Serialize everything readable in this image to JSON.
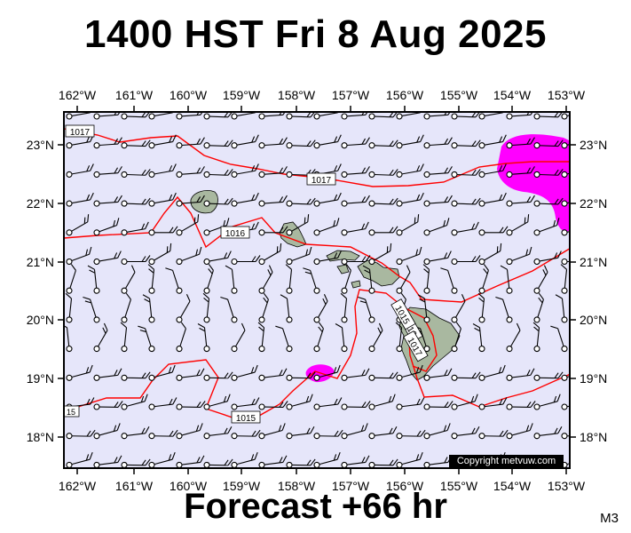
{
  "title": "1400 HST Fri 8 Aug 2025",
  "footer": "Forecast +66 hr",
  "model_code": "M3",
  "copyright": "Copyright metvuw.com",
  "colors": {
    "ocean": "#e6e6fa",
    "land": "#a9b8a0",
    "isobar": "#ff0000",
    "rain": "#ff00ff",
    "barb": "#000000"
  },
  "map": {
    "lon_labels": [
      "162°W",
      "161°W",
      "160°W",
      "159°W",
      "158°W",
      "157°W",
      "156°W",
      "155°W",
      "154°W",
      "153°W"
    ],
    "lat_labels": [
      "23°N",
      "22°N",
      "21°N",
      "20°N",
      "19°N",
      "18°N"
    ],
    "isobar_labels": [
      "1017",
      "1017",
      "1016",
      "1015",
      "1016",
      "1017",
      "1015",
      "15"
    ],
    "islands": [
      "Kauai",
      "Oahu",
      "Molokai",
      "Lanai",
      "Maui",
      "Kahoolawe",
      "Hawaii"
    ]
  }
}
